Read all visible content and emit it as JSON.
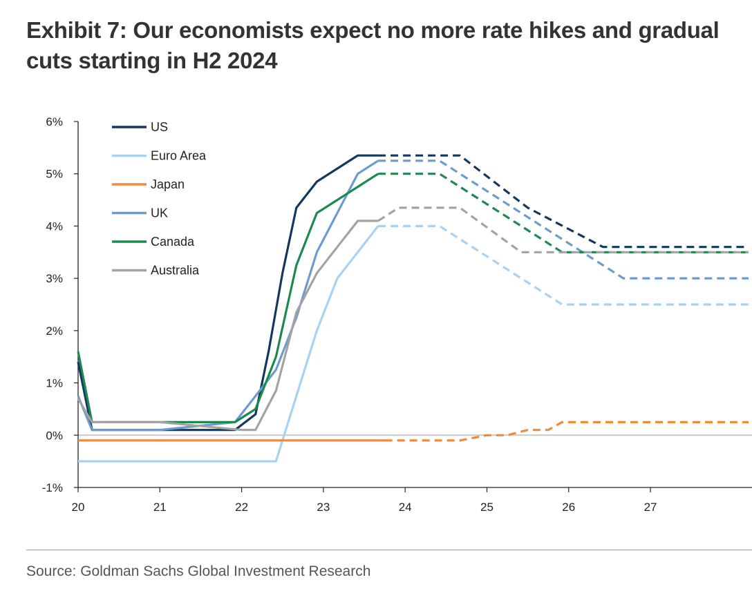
{
  "title": "Exhibit 7: Our economists expect no more rate hikes and gradual cuts starting in H2 2024",
  "source": "Source: Goldman Sachs Global Investment Research",
  "chart_data": {
    "type": "line",
    "title": "Exhibit 7: Our economists expect no more rate hikes and gradual cuts starting in H2 2024",
    "xlabel": "",
    "ylabel": "",
    "xlim": [
      20,
      28.2
    ],
    "ylim": [
      -1,
      6
    ],
    "x_ticks": [
      20,
      21,
      22,
      23,
      24,
      25,
      26,
      27
    ],
    "x_tick_labels": [
      "20",
      "21",
      "22",
      "23",
      "24",
      "25",
      "26",
      "27"
    ],
    "y_ticks": [
      -1,
      0,
      1,
      2,
      3,
      4,
      5,
      6
    ],
    "y_tick_labels": [
      "-1%",
      "0%",
      "1%",
      "2%",
      "3%",
      "4%",
      "5%",
      "6%"
    ],
    "legend_position": "top-left",
    "legend": [
      "US",
      "Euro Area",
      "Japan",
      "UK",
      "Canada",
      "Australia"
    ],
    "series": [
      {
        "name": "US",
        "color": "#13375f",
        "actual_x": [
          20,
          20.17,
          20.5,
          21,
          21.5,
          21.92,
          22.17,
          22.33,
          22.5,
          22.67,
          22.92,
          23.17,
          23.42,
          23.67
        ],
        "actual_y": [
          1.4,
          0.1,
          0.1,
          0.1,
          0.1,
          0.1,
          0.4,
          1.6,
          3.1,
          4.35,
          4.85,
          5.1,
          5.35,
          5.35
        ],
        "forecast_x": [
          23.67,
          24.67,
          25.5,
          26.42,
          28.2
        ],
        "forecast_y": [
          5.35,
          5.35,
          4.35,
          3.6,
          3.6
        ]
      },
      {
        "name": "Euro Area",
        "color": "#a8d2f2",
        "actual_x": [
          20,
          21,
          22,
          22.42,
          22.67,
          22.92,
          23.17,
          23.67
        ],
        "actual_y": [
          -0.5,
          -0.5,
          -0.5,
          -0.5,
          0.75,
          2.0,
          3.0,
          4.0
        ],
        "forecast_x": [
          23.67,
          24.42,
          25.92,
          28.2
        ],
        "forecast_y": [
          4.0,
          4.0,
          2.5,
          2.5
        ]
      },
      {
        "name": "Japan",
        "color": "#f08a3c",
        "actual_x": [
          20,
          23.75
        ],
        "actual_y": [
          -0.1,
          -0.1
        ],
        "forecast_x": [
          23.75,
          24.67,
          25.0,
          25.25,
          25.5,
          25.75,
          25.92,
          28.2
        ],
        "forecast_y": [
          -0.1,
          -0.1,
          0.0,
          0.0,
          0.1,
          0.1,
          0.25,
          0.25
        ]
      },
      {
        "name": "UK",
        "color": "#6d9bd0",
        "actual_x": [
          20,
          20.17,
          21,
          21.92,
          22.17,
          22.42,
          22.67,
          22.92,
          23.17,
          23.42,
          23.67
        ],
        "actual_y": [
          0.75,
          0.1,
          0.1,
          0.25,
          0.75,
          1.25,
          2.25,
          3.5,
          4.25,
          5.0,
          5.25
        ],
        "forecast_x": [
          23.67,
          24.42,
          26.67,
          28.2
        ],
        "forecast_y": [
          5.25,
          5.25,
          3.0,
          3.0
        ]
      },
      {
        "name": "Canada",
        "color": "#1c8a4e",
        "actual_x": [
          20,
          20.17,
          21,
          21.92,
          22.17,
          22.42,
          22.67,
          22.92,
          23.17,
          23.42,
          23.67
        ],
        "actual_y": [
          1.6,
          0.25,
          0.25,
          0.25,
          0.5,
          1.5,
          3.25,
          4.25,
          4.5,
          4.75,
          5.0
        ],
        "forecast_x": [
          23.67,
          24.42,
          25.92,
          28.2
        ],
        "forecast_y": [
          5.0,
          5.0,
          3.5,
          3.5
        ]
      },
      {
        "name": "Australia",
        "color": "#a3a3a3",
        "actual_x": [
          20,
          20.17,
          21,
          22,
          22.17,
          22.42,
          22.67,
          22.92,
          23.17,
          23.42,
          23.67
        ],
        "actual_y": [
          0.7,
          0.25,
          0.25,
          0.1,
          0.1,
          0.85,
          2.35,
          3.1,
          3.6,
          4.1,
          4.1
        ],
        "forecast_x": [
          23.67,
          23.92,
          24.67,
          25.42,
          28.2
        ],
        "forecast_y": [
          4.1,
          4.35,
          4.35,
          3.5,
          3.5
        ]
      }
    ]
  }
}
